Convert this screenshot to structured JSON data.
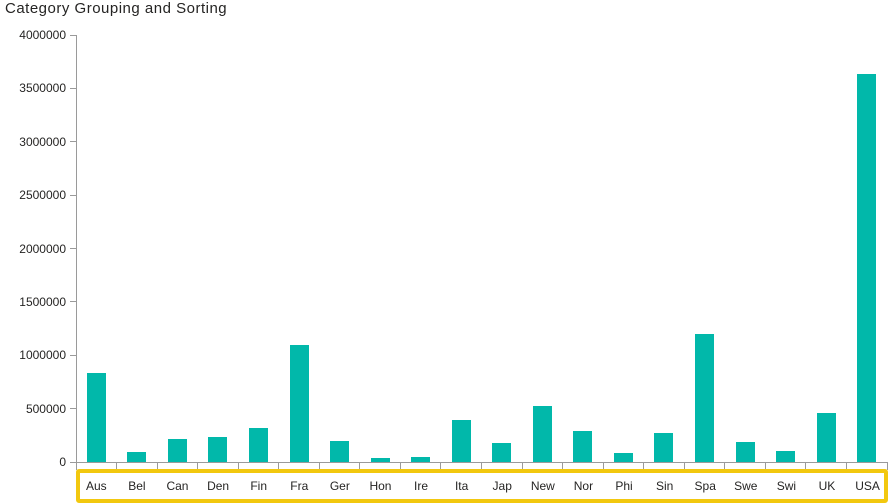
{
  "header": {
    "title": "Category Grouping and Sorting"
  },
  "chart_data": {
    "type": "bar",
    "title": "Category Grouping and Sorting",
    "categories": [
      "Aus",
      "Bel",
      "Can",
      "Den",
      "Fin",
      "Fra",
      "Ger",
      "Hon",
      "Ire",
      "Ita",
      "Jap",
      "New",
      "Nor",
      "Phi",
      "Sin",
      "Spa",
      "Swe",
      "Swi",
      "UK",
      "USA"
    ],
    "values": [
      830000,
      90000,
      215000,
      235000,
      320000,
      1100000,
      200000,
      40000,
      45000,
      390000,
      175000,
      525000,
      290000,
      80000,
      270000,
      1200000,
      190000,
      100000,
      460000,
      3630000
    ],
    "xlabel": "",
    "ylabel": "",
    "ylim": [
      0,
      4000000
    ],
    "y_ticks": [
      0,
      500000,
      1000000,
      1500000,
      2000000,
      2500000,
      3000000,
      3500000,
      4000000
    ],
    "grid": false,
    "legend": "none",
    "bar_color": "#01B8AA",
    "axis_color": "#9a9a9a",
    "label_color": "#252423",
    "category_highlight_box_color": "#F2C80F"
  }
}
